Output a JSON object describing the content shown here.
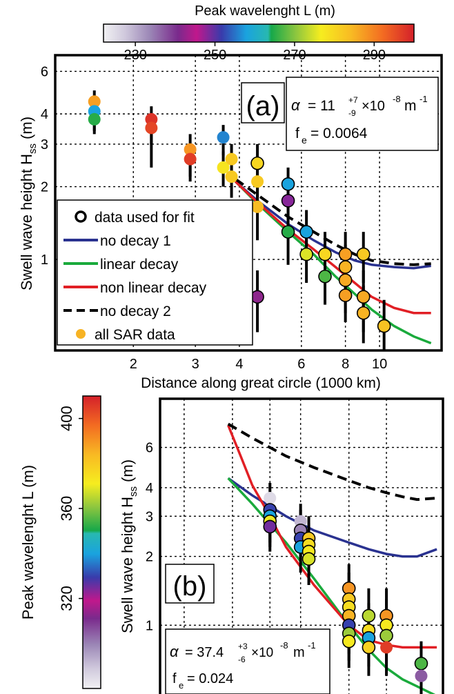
{
  "chart_data": [
    {
      "panel": "(a)",
      "type": "scatter",
      "x_scale": "log",
      "y_scale": "log",
      "xlim": [
        1.2,
        15
      ],
      "ylim": [
        0.42,
        7
      ],
      "x_ticks": [
        2,
        3,
        4,
        6,
        8,
        10
      ],
      "y_ticks": [
        1,
        2,
        3,
        4,
        6
      ],
      "xlabel": "Distance along great circle (1000 km)",
      "ylabel": "Swell wave height H",
      "ylabel_sub": "ss",
      "ylabel_unit": "(m)",
      "panel_label": "(a)",
      "annotation": {
        "alpha_symbol": "α",
        "eq": "= 11",
        "sup": "+7",
        "sub": "-9",
        "scale": "×10",
        "exp": "-8",
        "unit": "m",
        "unit_exp": "-1",
        "fe_label": "f",
        "fe_sub": "e",
        "fe_value": "= 0.0064"
      },
      "colorbar": {
        "title": "Peak wavelenght L (m)",
        "range": [
          222,
          300
        ],
        "ticks": [
          "230",
          "250",
          "270",
          "290"
        ],
        "tick_values": [
          230,
          250,
          270,
          290
        ],
        "orientation": "horizontal"
      },
      "legend": {
        "placement": "lower-left",
        "entries": [
          {
            "label": "data used for fit",
            "style": "open-circle",
            "color": "#000000"
          },
          {
            "label": "no decay 1",
            "style": "line",
            "color": "#2a3290"
          },
          {
            "label": "linear decay",
            "style": "line",
            "color": "#1aaa3c"
          },
          {
            "label": "non linear decay",
            "style": "line",
            "color": "#e11f25"
          },
          {
            "label": "no decay 2",
            "style": "dashed",
            "color": "#000000"
          },
          {
            "label": "all SAR data",
            "style": "dot",
            "color": "#f7b324"
          }
        ]
      },
      "series": [
        {
          "name": "no decay 1",
          "color": "#2a3290",
          "style": "solid",
          "x": [
            3.9,
            4.5,
            5.5,
            6.5,
            7.5,
            8.5,
            9.5,
            11,
            12.5,
            14
          ],
          "y": [
            2.1,
            1.75,
            1.4,
            1.2,
            1.07,
            0.99,
            0.95,
            0.93,
            0.92,
            0.94
          ]
        },
        {
          "name": "linear decay",
          "color": "#1aaa3c",
          "style": "solid",
          "x": [
            3.9,
            4.5,
            5.5,
            6.5,
            7.5,
            8.5,
            9.5,
            11,
            12.5,
            14
          ],
          "y": [
            2.1,
            1.7,
            1.3,
            1.05,
            0.85,
            0.72,
            0.62,
            0.53,
            0.48,
            0.45
          ]
        },
        {
          "name": "non linear decay",
          "color": "#e11f25",
          "style": "solid",
          "x": [
            3.9,
            4.5,
            5.5,
            6.5,
            7.5,
            8.5,
            9.5,
            11,
            12.5,
            14
          ],
          "y": [
            2.1,
            1.72,
            1.33,
            1.1,
            0.93,
            0.8,
            0.7,
            0.63,
            0.6,
            0.6
          ]
        },
        {
          "name": "no decay 2",
          "color": "#000000",
          "style": "dashed",
          "x": [
            3.9,
            4.5,
            5.5,
            6.5,
            7.5,
            8.5,
            9.5,
            11,
            12.5,
            14
          ],
          "y": [
            2.15,
            1.85,
            1.5,
            1.3,
            1.15,
            1.05,
            0.99,
            0.96,
            0.95,
            0.96
          ]
        }
      ],
      "points": [
        {
          "x": 1.55,
          "y": 4.5,
          "L": 287,
          "used": false,
          "err": [
            3.6,
            5.0
          ]
        },
        {
          "x": 1.55,
          "y": 4.1,
          "L": 258,
          "used": false,
          "err": [
            3.4,
            4.6
          ]
        },
        {
          "x": 1.55,
          "y": 3.8,
          "L": 265,
          "used": false,
          "err": [
            3.3,
            4.3
          ]
        },
        {
          "x": 2.25,
          "y": 3.8,
          "L": 298,
          "used": false,
          "err": [
            3.0,
            4.3
          ]
        },
        {
          "x": 2.25,
          "y": 3.5,
          "L": 296,
          "used": false,
          "err": [
            2.4,
            4.0
          ]
        },
        {
          "x": 2.9,
          "y": 2.85,
          "L": 288,
          "used": false,
          "err": [
            2.2,
            3.3
          ]
        },
        {
          "x": 2.9,
          "y": 2.6,
          "L": 297,
          "used": false,
          "err": [
            2.1,
            3.0
          ]
        },
        {
          "x": 3.6,
          "y": 3.2,
          "L": 256,
          "used": false,
          "err": [
            2.7,
            3.6
          ]
        },
        {
          "x": 3.6,
          "y": 2.4,
          "L": 278,
          "used": false,
          "err": [
            2.0,
            2.8
          ]
        },
        {
          "x": 3.8,
          "y": 2.6,
          "L": 282,
          "used": false,
          "err": [
            2.1,
            3.0
          ]
        },
        {
          "x": 3.8,
          "y": 2.2,
          "L": 282,
          "used": false,
          "err": [
            1.8,
            2.6
          ]
        },
        {
          "x": 4.5,
          "y": 2.5,
          "L": 280,
          "used": true,
          "err": [
            1.8,
            3.0
          ]
        },
        {
          "x": 4.5,
          "y": 2.1,
          "L": 282,
          "used": false,
          "err": [
            1.6,
            2.5
          ]
        },
        {
          "x": 4.5,
          "y": 1.65,
          "L": 284,
          "used": false,
          "err": [
            1.2,
            2.0
          ]
        },
        {
          "x": 4.5,
          "y": 0.7,
          "L": 242,
          "used": true,
          "err": [
            0.5,
            0.9
          ]
        },
        {
          "x": 5.5,
          "y": 2.05,
          "L": 258,
          "used": true,
          "err": [
            1.6,
            2.4
          ]
        },
        {
          "x": 5.5,
          "y": 1.75,
          "L": 248,
          "used": true,
          "err": [
            1.3,
            2.1
          ]
        },
        {
          "x": 5.5,
          "y": 1.3,
          "L": 265,
          "used": true,
          "err": [
            0.95,
            1.6
          ]
        },
        {
          "x": 6.2,
          "y": 1.3,
          "L": 258,
          "used": true,
          "err": [
            1.0,
            1.6
          ]
        },
        {
          "x": 6.2,
          "y": 1.05,
          "L": 275,
          "used": true,
          "err": [
            0.8,
            1.3
          ]
        },
        {
          "x": 7.0,
          "y": 1.05,
          "L": 280,
          "used": true,
          "err": [
            0.8,
            1.3
          ]
        },
        {
          "x": 7.0,
          "y": 0.85,
          "L": 267,
          "used": true,
          "err": [
            0.65,
            1.05
          ]
        },
        {
          "x": 8.0,
          "y": 1.05,
          "L": 287,
          "used": true,
          "err": [
            0.8,
            1.3
          ]
        },
        {
          "x": 8.0,
          "y": 0.93,
          "L": 285,
          "used": true,
          "err": [
            0.7,
            1.15
          ]
        },
        {
          "x": 8.0,
          "y": 0.82,
          "L": 286,
          "used": true,
          "err": [
            0.6,
            1.0
          ]
        },
        {
          "x": 8.0,
          "y": 0.71,
          "L": 287,
          "used": true,
          "err": [
            0.55,
            0.9
          ]
        },
        {
          "x": 9.0,
          "y": 1.05,
          "L": 282,
          "used": true,
          "err": [
            0.8,
            1.3
          ]
        },
        {
          "x": 9.0,
          "y": 0.7,
          "L": 286,
          "used": true,
          "err": [
            0.5,
            0.9
          ]
        },
        {
          "x": 9.0,
          "y": 0.6,
          "L": 285,
          "used": true,
          "err": [
            0.45,
            0.78
          ]
        },
        {
          "x": 10.3,
          "y": 0.53,
          "L": 283,
          "used": true,
          "err": [
            0.42,
            0.68
          ]
        }
      ]
    },
    {
      "panel": "(b)",
      "type": "scatter",
      "x_scale": "log",
      "y_scale": "log",
      "xlim": [
        2.6,
        14
      ],
      "ylim": [
        0.5,
        9.8
      ],
      "y_ticks": [
        1,
        2,
        3,
        4,
        6
      ],
      "ylabel": "Swell wave height H",
      "ylabel_sub": "ss",
      "ylabel_unit": "(m)",
      "panel_label": "(b)",
      "annotation": {
        "alpha_symbol": "α",
        "eq": "= 37.4",
        "sup": "+3",
        "sub": "-6",
        "scale": "×10",
        "exp": "-8",
        "unit": "m",
        "unit_exp": "-1",
        "fe_label": "f",
        "fe_sub": "e",
        "fe_value": "= 0.024"
      },
      "colorbar": {
        "title": "Peak wavelenght L (m)",
        "range": [
          280,
          410
        ],
        "ticks": [
          "320",
          "360",
          "400"
        ],
        "tick_values": [
          320,
          360,
          400
        ],
        "orientation": "vertical"
      },
      "series": [
        {
          "name": "no decay 1",
          "color": "#2a3290",
          "style": "solid",
          "x": [
            3.9,
            4.5,
            5.5,
            6.5,
            8,
            9,
            10,
            11,
            12,
            13.5
          ],
          "y": [
            4.4,
            3.7,
            3.0,
            2.6,
            2.3,
            2.15,
            2.05,
            2.0,
            2.0,
            2.15
          ]
        },
        {
          "name": "linear decay",
          "color": "#1aaa3c",
          "style": "solid",
          "x": [
            3.9,
            4.5,
            5.5,
            6.5,
            8,
            9,
            10,
            11,
            12,
            13.5
          ],
          "y": [
            4.4,
            3.4,
            2.3,
            1.6,
            1.0,
            0.78,
            0.65,
            0.58,
            0.54,
            0.49
          ]
        },
        {
          "name": "non linear decay",
          "color": "#e11f25",
          "style": "solid",
          "x": [
            3.9,
            4.2,
            4.5,
            5.0,
            5.5,
            6.5,
            8,
            9,
            10,
            11,
            12,
            13.5
          ],
          "y": [
            7.5,
            5.5,
            4.1,
            3.0,
            2.2,
            1.5,
            1.0,
            0.86,
            0.82,
            0.8,
            0.8,
            0.8
          ]
        },
        {
          "name": "no decay 2",
          "color": "#000000",
          "style": "dashed",
          "x": [
            3.9,
            4.5,
            5.5,
            6.5,
            8,
            9,
            10,
            11,
            12,
            13.5
          ],
          "y": [
            7.6,
            6.6,
            5.5,
            4.9,
            4.3,
            4.0,
            3.8,
            3.65,
            3.55,
            3.6
          ]
        }
      ],
      "points": [
        {
          "x": 5.0,
          "y": 3.6,
          "L": 285,
          "used": false,
          "err": [
            2.7,
            4.2
          ]
        },
        {
          "x": 5.0,
          "y": 3.2,
          "L": 330,
          "used": true,
          "err": [
            2.5,
            3.8
          ]
        },
        {
          "x": 5.0,
          "y": 3.0,
          "L": 340,
          "used": true,
          "err": [
            2.3,
            3.6
          ]
        },
        {
          "x": 5.0,
          "y": 2.85,
          "L": 370,
          "used": true,
          "err": [
            2.2,
            3.4
          ]
        },
        {
          "x": 5.0,
          "y": 2.7,
          "L": 325,
          "used": true,
          "err": [
            2.1,
            3.3
          ]
        },
        {
          "x": 6.0,
          "y": 2.85,
          "L": 292,
          "used": false,
          "err": [
            2.2,
            3.4
          ]
        },
        {
          "x": 6.0,
          "y": 2.6,
          "L": 300,
          "used": true,
          "err": [
            2.0,
            3.2
          ]
        },
        {
          "x": 6.0,
          "y": 2.4,
          "L": 330,
          "used": true,
          "err": [
            1.9,
            3.0
          ]
        },
        {
          "x": 6.0,
          "y": 2.2,
          "L": 340,
          "used": true,
          "err": [
            1.7,
            2.7
          ]
        },
        {
          "x": 6.3,
          "y": 2.4,
          "L": 380,
          "used": true,
          "err": [
            1.9,
            3.0
          ]
        },
        {
          "x": 6.3,
          "y": 2.25,
          "L": 375,
          "used": true,
          "err": [
            1.8,
            2.8
          ]
        },
        {
          "x": 6.3,
          "y": 2.1,
          "L": 372,
          "used": true,
          "err": [
            1.6,
            2.6
          ]
        },
        {
          "x": 6.3,
          "y": 1.95,
          "L": 368,
          "used": true,
          "err": [
            1.5,
            2.4
          ]
        },
        {
          "x": 8.0,
          "y": 1.45,
          "L": 390,
          "used": true,
          "err": [
            1.1,
            1.85
          ]
        },
        {
          "x": 8.0,
          "y": 1.3,
          "L": 380,
          "used": true,
          "err": [
            1.0,
            1.7
          ]
        },
        {
          "x": 8.0,
          "y": 1.2,
          "L": 375,
          "used": true,
          "err": [
            0.9,
            1.55
          ]
        },
        {
          "x": 8.0,
          "y": 1.1,
          "L": 385,
          "used": true,
          "err": [
            0.85,
            1.45
          ]
        },
        {
          "x": 8.0,
          "y": 1.0,
          "L": 330,
          "used": true,
          "err": [
            0.75,
            1.3
          ]
        },
        {
          "x": 8.0,
          "y": 0.92,
          "L": 362,
          "used": true,
          "err": [
            0.7,
            1.2
          ]
        },
        {
          "x": 8.0,
          "y": 0.85,
          "L": 372,
          "used": true,
          "err": [
            0.65,
            1.1
          ]
        },
        {
          "x": 9.0,
          "y": 1.1,
          "L": 365,
          "used": true,
          "err": [
            0.85,
            1.45
          ]
        },
        {
          "x": 9.0,
          "y": 0.95,
          "L": 375,
          "used": true,
          "err": [
            0.72,
            1.25
          ]
        },
        {
          "x": 9.0,
          "y": 0.88,
          "L": 340,
          "used": true,
          "err": [
            0.66,
            1.15
          ]
        },
        {
          "x": 9.0,
          "y": 0.8,
          "L": 378,
          "used": true,
          "err": [
            0.6,
            1.05
          ]
        },
        {
          "x": 10.0,
          "y": 1.1,
          "L": 390,
          "used": true,
          "err": [
            0.85,
            1.45
          ]
        },
        {
          "x": 10.0,
          "y": 1.0,
          "L": 372,
          "used": true,
          "err": [
            0.75,
            1.3
          ]
        },
        {
          "x": 10.0,
          "y": 0.9,
          "L": 362,
          "used": true,
          "err": [
            0.68,
            1.15
          ]
        },
        {
          "x": 10.0,
          "y": 0.8,
          "L": 405,
          "used": false,
          "err": [
            0.6,
            1.05
          ]
        },
        {
          "x": 12.3,
          "y": 0.68,
          "L": 355,
          "used": true,
          "err": [
            0.55,
            0.85
          ]
        },
        {
          "x": 12.3,
          "y": 0.6,
          "L": 305,
          "used": false,
          "err": [
            0.5,
            0.72
          ]
        }
      ]
    }
  ]
}
